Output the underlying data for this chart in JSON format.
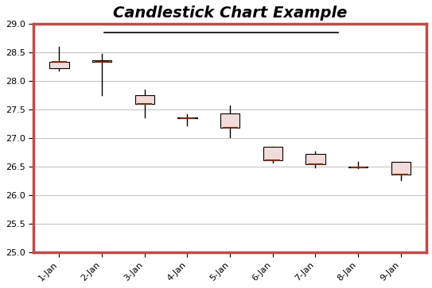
{
  "title": "Candlestick Chart Example",
  "dates": [
    "1-Jan",
    "2-Jan",
    "3-Jan",
    "4-Jan",
    "5-Jan",
    "6-Jan",
    "7-Jan",
    "8-Jan",
    "9-Jan"
  ],
  "candles": [
    {
      "open": 28.22,
      "high": 28.6,
      "low": 28.18,
      "close": 28.33
    },
    {
      "open": 28.37,
      "high": 28.48,
      "low": 27.75,
      "close": 28.33
    },
    {
      "open": 27.75,
      "high": 27.85,
      "low": 27.37,
      "close": 27.6
    },
    {
      "open": 27.35,
      "high": 27.42,
      "low": 27.22,
      "close": 27.35
    },
    {
      "open": 27.43,
      "high": 27.57,
      "low": 27.02,
      "close": 27.18
    },
    {
      "open": 26.85,
      "high": 26.85,
      "low": 26.57,
      "close": 26.62
    },
    {
      "open": 26.73,
      "high": 26.77,
      "low": 26.49,
      "close": 26.54
    },
    {
      "open": 26.5,
      "high": 26.58,
      "low": 26.47,
      "close": 26.49
    },
    {
      "open": 26.59,
      "high": 26.59,
      "low": 26.27,
      "close": 26.36
    }
  ],
  "box_color": "#f2dcdb",
  "box_edge_color": "#000000",
  "wick_color": "#000000",
  "close_line_color": "#7b3010",
  "ylim": [
    25.0,
    29.0
  ],
  "yticks": [
    25.0,
    25.5,
    26.0,
    26.5,
    27.0,
    27.5,
    28.0,
    28.5,
    29.0
  ],
  "background_color": "#ffffff",
  "border_color": "#be4b48",
  "title_fontsize": 14,
  "figsize": [
    5.43,
    3.63
  ],
  "dpi": 100
}
